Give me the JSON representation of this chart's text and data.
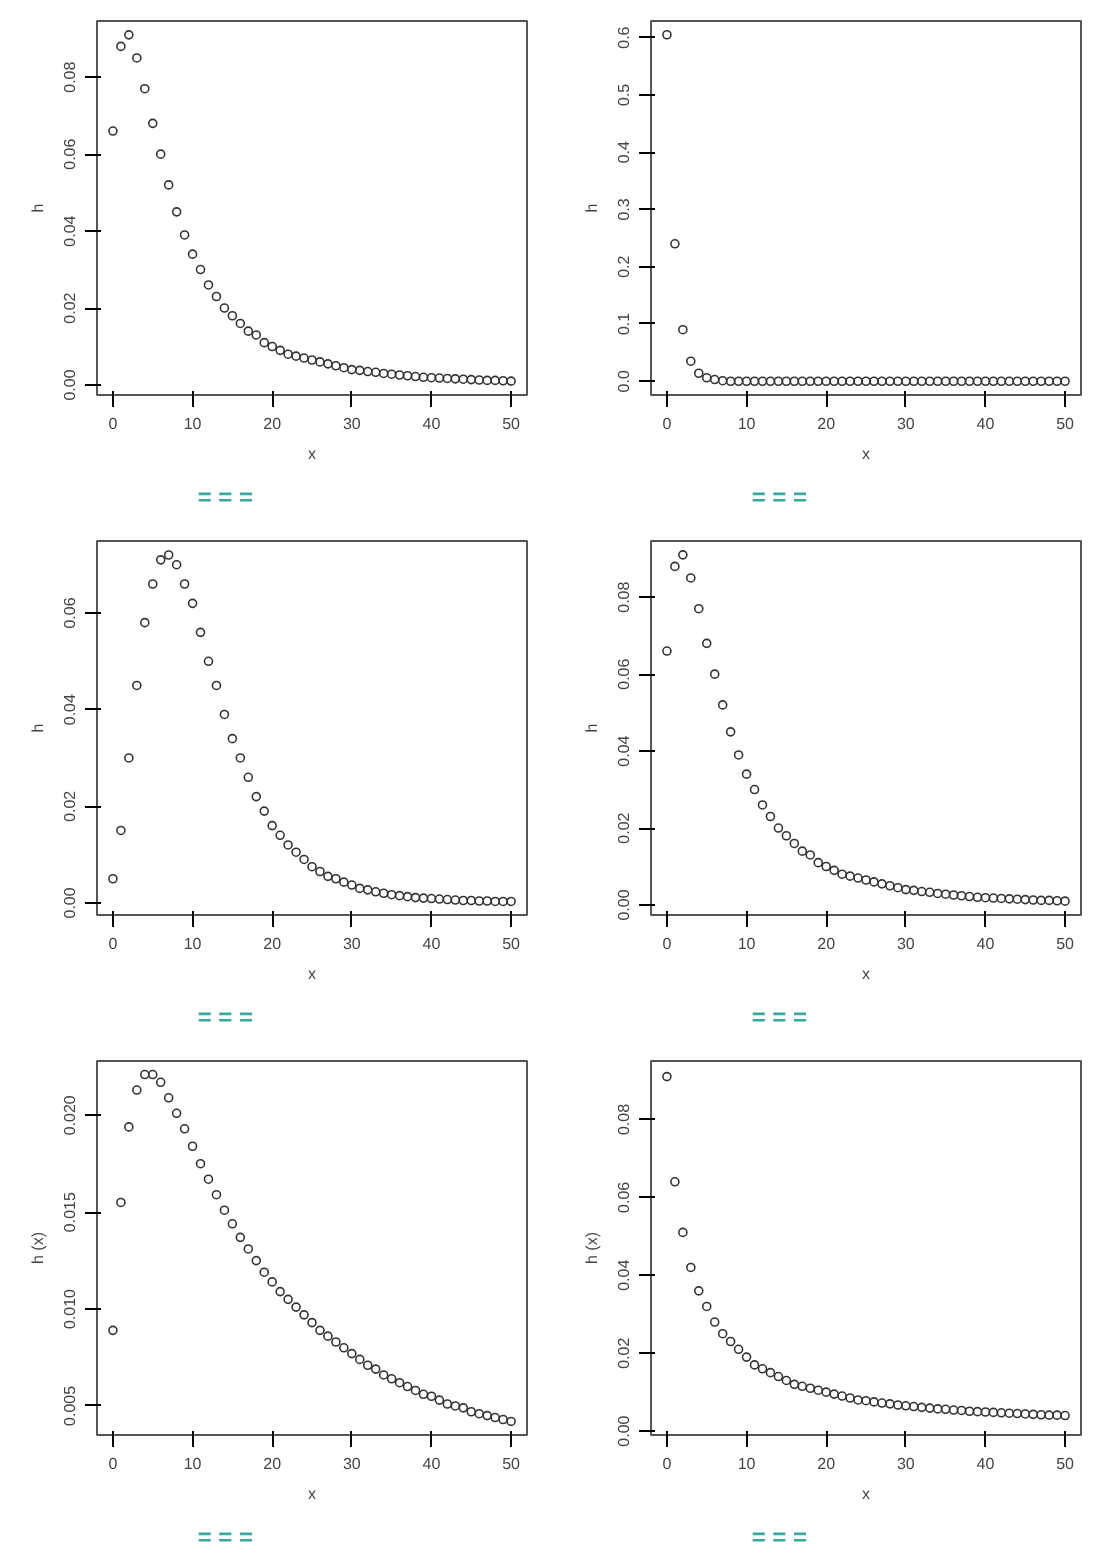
{
  "chart_data": [
    {
      "type": "scatter",
      "xlabel": "x",
      "ylabel": "h",
      "marker": "circle",
      "grid": false,
      "x": [
        0,
        1,
        2,
        3,
        4,
        5,
        6,
        7,
        8,
        9,
        10,
        11,
        12,
        13,
        14,
        15,
        16,
        17,
        18,
        19,
        20,
        21,
        22,
        23,
        24,
        25,
        26,
        27,
        28,
        29,
        30,
        31,
        32,
        33,
        34,
        35,
        36,
        37,
        38,
        39,
        40,
        41,
        42,
        43,
        44,
        45,
        46,
        47,
        48,
        49,
        50
      ],
      "series": [
        {
          "color": "#333333",
          "values": [
            0.066,
            0.088,
            0.091,
            0.085,
            0.077,
            0.068,
            0.06,
            0.052,
            0.045,
            0.039,
            0.034,
            0.03,
            0.026,
            0.023,
            0.02,
            0.018,
            0.016,
            0.014,
            0.013,
            0.011,
            0.01,
            0.009,
            0.008,
            0.0075,
            0.007,
            0.0065,
            0.006,
            0.0055,
            0.005,
            0.0045,
            0.004,
            0.0038,
            0.0035,
            0.0033,
            0.003,
            0.0028,
            0.0026,
            0.0024,
            0.0022,
            0.002,
            0.0019,
            0.0018,
            0.0017,
            0.0016,
            0.0015,
            0.0014,
            0.0013,
            0.0012,
            0.0012,
            0.0011,
            0.001
          ]
        }
      ],
      "xlim": [
        -2,
        52
      ],
      "xticks": [
        0,
        10,
        20,
        30,
        40,
        50
      ],
      "ylim": [
        -0.0026,
        0.0946
      ],
      "yticks": [
        {
          "value": 0,
          "label": "0.00"
        },
        {
          "value": 0.02,
          "label": "0.02"
        },
        {
          "value": 0.04,
          "label": "0.04"
        },
        {
          "value": 0.06,
          "label": "0.06"
        },
        {
          "value": 0.08,
          "label": "0.08"
        }
      ],
      "annotations": [
        "=",
        "=",
        "="
      ]
    },
    {
      "type": "scatter",
      "xlabel": "x",
      "ylabel": "h",
      "marker": "circle",
      "grid": false,
      "x": [
        0,
        1,
        2,
        3,
        4,
        5,
        6,
        7,
        8,
        9,
        10,
        11,
        12,
        13,
        14,
        15,
        16,
        17,
        18,
        19,
        20,
        21,
        22,
        23,
        24,
        25,
        26,
        27,
        28,
        29,
        30,
        31,
        32,
        33,
        34,
        35,
        36,
        37,
        38,
        39,
        40,
        41,
        42,
        43,
        44,
        45,
        46,
        47,
        48,
        49,
        50
      ],
      "series": [
        {
          "color": "#333333",
          "values": [
            0.605,
            0.24,
            0.09,
            0.035,
            0.014,
            0.006,
            0.003,
            0.001,
            0,
            0,
            0,
            0,
            0,
            0,
            0,
            0,
            0,
            0,
            0,
            0,
            0,
            0,
            0,
            0,
            0,
            0,
            0,
            0,
            0,
            0,
            0,
            0,
            0,
            0,
            0,
            0,
            0,
            0,
            0,
            0,
            0,
            0,
            0,
            0,
            0,
            0,
            0,
            0,
            0,
            0,
            0
          ]
        }
      ],
      "xlim": [
        -2,
        52
      ],
      "xticks": [
        0,
        10,
        20,
        30,
        40,
        50
      ],
      "ylim": [
        -0.024,
        0.629
      ],
      "yticks": [
        {
          "value": 0,
          "label": "0.0"
        },
        {
          "value": 0.1,
          "label": "0.1"
        },
        {
          "value": 0.2,
          "label": "0.2"
        },
        {
          "value": 0.3,
          "label": "0.3"
        },
        {
          "value": 0.4,
          "label": "0.4"
        },
        {
          "value": 0.5,
          "label": "0.5"
        },
        {
          "value": 0.6,
          "label": "0.6"
        }
      ],
      "annotations": [
        "=",
        "=",
        "="
      ]
    },
    {
      "type": "scatter",
      "xlabel": "x",
      "ylabel": "h",
      "marker": "circle",
      "grid": false,
      "x": [
        0,
        1,
        2,
        3,
        4,
        5,
        6,
        7,
        8,
        9,
        10,
        11,
        12,
        13,
        14,
        15,
        16,
        17,
        18,
        19,
        20,
        21,
        22,
        23,
        24,
        25,
        26,
        27,
        28,
        29,
        30,
        31,
        32,
        33,
        34,
        35,
        36,
        37,
        38,
        39,
        40,
        41,
        42,
        43,
        44,
        45,
        46,
        47,
        48,
        49,
        50
      ],
      "series": [
        {
          "color": "#333333",
          "values": [
            0.005,
            0.015,
            0.03,
            0.045,
            0.058,
            0.066,
            0.071,
            0.072,
            0.07,
            0.066,
            0.062,
            0.056,
            0.05,
            0.045,
            0.039,
            0.034,
            0.03,
            0.026,
            0.022,
            0.019,
            0.016,
            0.014,
            0.012,
            0.0105,
            0.009,
            0.0075,
            0.0065,
            0.0055,
            0.005,
            0.0043,
            0.0037,
            0.003,
            0.0027,
            0.0023,
            0.002,
            0.0017,
            0.0015,
            0.0013,
            0.0011,
            0.001,
            0.0009,
            0.0008,
            0.0007,
            0.0006,
            0.0005,
            0.0005,
            0.0004,
            0.0004,
            0.0003,
            0.0003,
            0.0003
          ]
        }
      ],
      "xlim": [
        -2,
        52
      ],
      "xticks": [
        0,
        10,
        20,
        30,
        40,
        50
      ],
      "ylim": [
        -0.0025,
        0.0749
      ],
      "yticks": [
        {
          "value": 0,
          "label": "0.00"
        },
        {
          "value": 0.02,
          "label": "0.02"
        },
        {
          "value": 0.04,
          "label": "0.04"
        },
        {
          "value": 0.06,
          "label": "0.06"
        }
      ],
      "annotations": [
        "=",
        "=",
        "="
      ]
    },
    {
      "type": "scatter",
      "xlabel": "x",
      "ylabel": "h",
      "marker": "circle",
      "grid": false,
      "x": [
        0,
        1,
        2,
        3,
        4,
        5,
        6,
        7,
        8,
        9,
        10,
        11,
        12,
        13,
        14,
        15,
        16,
        17,
        18,
        19,
        20,
        21,
        22,
        23,
        24,
        25,
        26,
        27,
        28,
        29,
        30,
        31,
        32,
        33,
        34,
        35,
        36,
        37,
        38,
        39,
        40,
        41,
        42,
        43,
        44,
        45,
        46,
        47,
        48,
        49,
        50
      ],
      "series": [
        {
          "color": "#333333",
          "values": [
            0.066,
            0.088,
            0.091,
            0.085,
            0.077,
            0.068,
            0.06,
            0.052,
            0.045,
            0.039,
            0.034,
            0.03,
            0.026,
            0.023,
            0.02,
            0.018,
            0.016,
            0.014,
            0.013,
            0.011,
            0.01,
            0.009,
            0.008,
            0.0075,
            0.007,
            0.0065,
            0.006,
            0.0055,
            0.005,
            0.0045,
            0.004,
            0.0038,
            0.0035,
            0.0033,
            0.003,
            0.0028,
            0.0026,
            0.0024,
            0.0022,
            0.002,
            0.0019,
            0.0018,
            0.0017,
            0.0016,
            0.0015,
            0.0014,
            0.0013,
            0.0012,
            0.0012,
            0.0011,
            0.001
          ]
        }
      ],
      "xlim": [
        -2,
        52
      ],
      "xticks": [
        0,
        10,
        20,
        30,
        40,
        50
      ],
      "ylim": [
        -0.0026,
        0.0946
      ],
      "yticks": [
        {
          "value": 0,
          "label": "0.00"
        },
        {
          "value": 0.02,
          "label": "0.02"
        },
        {
          "value": 0.04,
          "label": "0.04"
        },
        {
          "value": 0.06,
          "label": "0.06"
        },
        {
          "value": 0.08,
          "label": "0.08"
        }
      ],
      "annotations": [
        "=",
        "=",
        "="
      ]
    },
    {
      "type": "scatter",
      "xlabel": "x",
      "ylabel": "h (x)",
      "marker": "circle",
      "grid": false,
      "x": [
        0,
        1,
        2,
        3,
        4,
        5,
        6,
        7,
        8,
        9,
        10,
        11,
        12,
        13,
        14,
        15,
        16,
        17,
        18,
        19,
        20,
        21,
        22,
        23,
        24,
        25,
        26,
        27,
        28,
        29,
        30,
        31,
        32,
        33,
        34,
        35,
        36,
        37,
        38,
        39,
        40,
        41,
        42,
        43,
        44,
        45,
        46,
        47,
        48,
        49,
        50
      ],
      "series": [
        {
          "color": "#333333",
          "values": [
            0.0089,
            0.0155,
            0.0194,
            0.0213,
            0.0221,
            0.0221,
            0.0217,
            0.0209,
            0.0201,
            0.0193,
            0.0184,
            0.0175,
            0.0167,
            0.0159,
            0.0151,
            0.0144,
            0.0137,
            0.0131,
            0.0125,
            0.0119,
            0.0114,
            0.0109,
            0.0105,
            0.0101,
            0.0097,
            0.0093,
            0.0089,
            0.0086,
            0.0083,
            0.008,
            0.0077,
            0.0074,
            0.0071,
            0.0069,
            0.0066,
            0.0064,
            0.0062,
            0.006,
            0.0058,
            0.0056,
            0.0055,
            0.0053,
            0.0051,
            0.005,
            0.0049,
            0.0047,
            0.0046,
            0.0045,
            0.0044,
            0.0043,
            0.0042
          ]
        }
      ],
      "xlim": [
        -2,
        52
      ],
      "xticks": [
        0,
        10,
        20,
        30,
        40,
        50
      ],
      "ylim": [
        0.0035,
        0.0228
      ],
      "yticks": [
        {
          "value": 0.005,
          "label": "0.005"
        },
        {
          "value": 0.01,
          "label": "0.010"
        },
        {
          "value": 0.015,
          "label": "0.015"
        },
        {
          "value": 0.02,
          "label": "0.020"
        }
      ],
      "annotations": [
        "=",
        "=",
        "="
      ]
    },
    {
      "type": "scatter",
      "xlabel": "x",
      "ylabel": "h (x)",
      "marker": "circle",
      "grid": false,
      "x": [
        0,
        1,
        2,
        3,
        4,
        5,
        6,
        7,
        8,
        9,
        10,
        11,
        12,
        13,
        14,
        15,
        16,
        17,
        18,
        19,
        20,
        21,
        22,
        23,
        24,
        25,
        26,
        27,
        28,
        29,
        30,
        31,
        32,
        33,
        34,
        35,
        36,
        37,
        38,
        39,
        40,
        41,
        42,
        43,
        44,
        45,
        46,
        47,
        48,
        49,
        50
      ],
      "series": [
        {
          "color": "#333333",
          "values": [
            0.091,
            0.064,
            0.051,
            0.042,
            0.036,
            0.032,
            0.028,
            0.025,
            0.023,
            0.021,
            0.019,
            0.017,
            0.016,
            0.015,
            0.014,
            0.013,
            0.012,
            0.0115,
            0.011,
            0.0105,
            0.01,
            0.0095,
            0.009,
            0.0085,
            0.008,
            0.0078,
            0.0075,
            0.0072,
            0.007,
            0.0067,
            0.0065,
            0.0063,
            0.0061,
            0.0059,
            0.0057,
            0.0056,
            0.0054,
            0.0053,
            0.0051,
            0.005,
            0.0049,
            0.0048,
            0.0047,
            0.0046,
            0.0045,
            0.0044,
            0.0043,
            0.0042,
            0.0041,
            0.0041,
            0.004
          ]
        }
      ],
      "xlim": [
        -2,
        52
      ],
      "xticks": [
        0,
        10,
        20,
        30,
        40,
        50
      ],
      "ylim": [
        -0.001,
        0.095
      ],
      "yticks": [
        {
          "value": 0,
          "label": "0.00"
        },
        {
          "value": 0.02,
          "label": "0.02"
        },
        {
          "value": 0.04,
          "label": "0.04"
        },
        {
          "value": 0.06,
          "label": "0.06"
        },
        {
          "value": 0.08,
          "label": "0.08"
        }
      ],
      "annotations": [
        "=",
        "=",
        "="
      ]
    }
  ]
}
